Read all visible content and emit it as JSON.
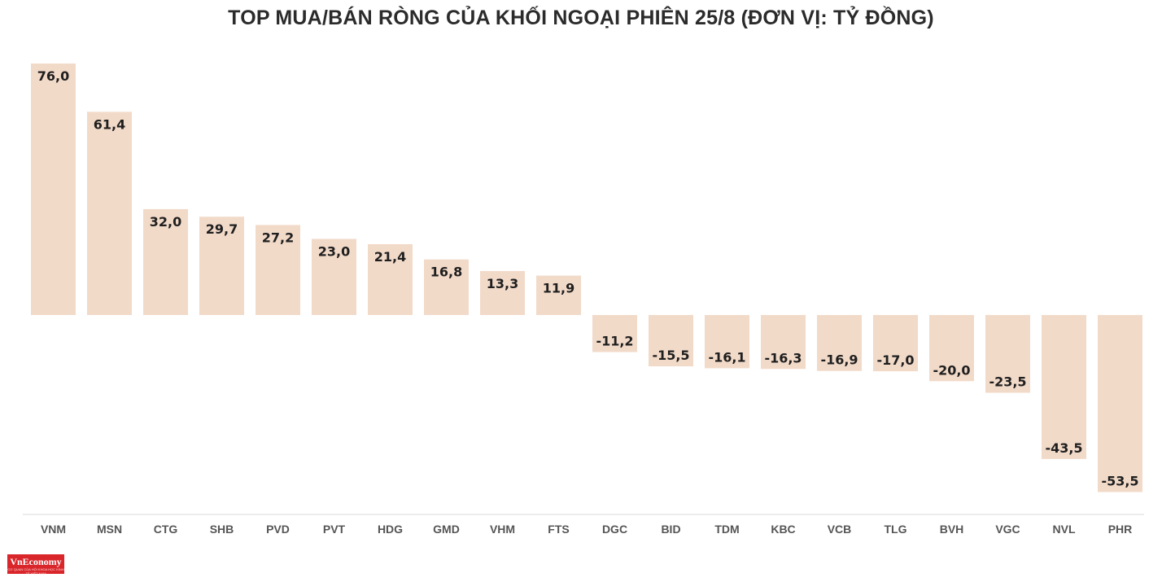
{
  "chart_data": {
    "type": "bar",
    "title": "TOP MUA/BÁN RÒNG CỦA KHỐI NGOẠI PHIÊN 25/8 (ĐƠN VỊ: TỶ ĐỒNG)",
    "categories": [
      "VNM",
      "MSN",
      "CTG",
      "SHB",
      "PVD",
      "PVT",
      "HDG",
      "GMD",
      "VHM",
      "FTS",
      "DGC",
      "BID",
      "TDM",
      "KBC",
      "VCB",
      "TLG",
      "BVH",
      "VGC",
      "NVL",
      "PHR"
    ],
    "values": [
      76.0,
      61.4,
      32.0,
      29.7,
      27.2,
      23.0,
      21.4,
      16.8,
      13.3,
      11.9,
      -11.2,
      -15.5,
      -16.1,
      -16.3,
      -16.9,
      -17.0,
      -20.0,
      -23.5,
      -43.5,
      -53.5
    ],
    "value_labels": [
      "76,0",
      "61,4",
      "32,0",
      "29,7",
      "27,2",
      "23,0",
      "21,4",
      "16,8",
      "13,3",
      "11,9",
      "-11,2",
      "-15,5",
      "-16,1",
      "-16,3",
      "-16,9",
      "-17,0",
      "-20,0",
      "-23,5",
      "-43,5",
      "-53,5"
    ],
    "ylim": [
      -60,
      76
    ],
    "grid": false,
    "legend": "none",
    "bar_color": "#f2dac9"
  },
  "logo": {
    "text": "VnEconomy",
    "tagline": "CƠ QUAN CỦA HỘI KHOA HỌC KINH TẾ VIỆT NAM"
  }
}
